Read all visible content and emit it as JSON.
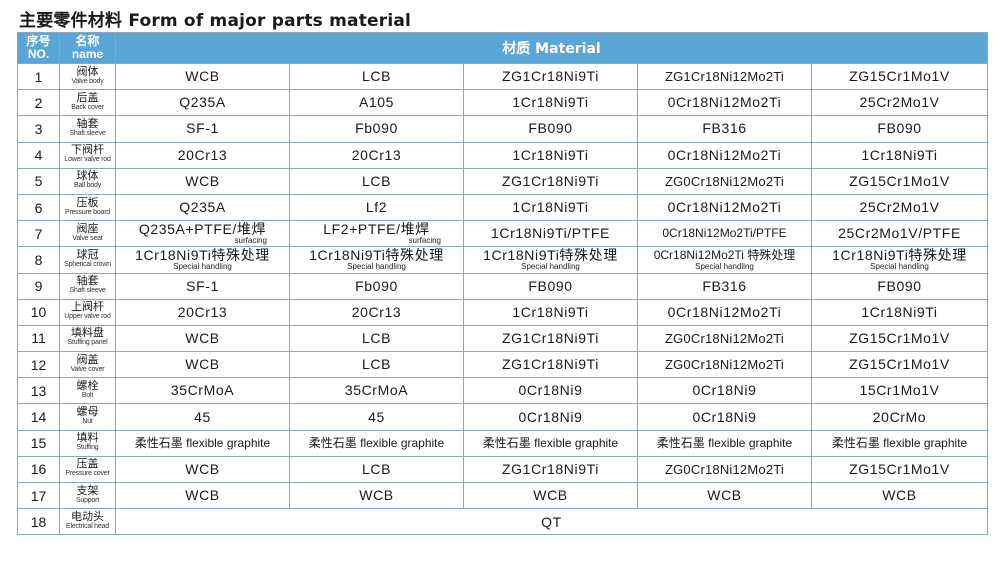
{
  "title": "主要零件材料  Form of major parts material",
  "header": {
    "no_cn": "序号",
    "no_en": "NO.",
    "name_cn": "名称",
    "name_en": "name",
    "material": "材质 Material"
  },
  "rows": [
    {
      "no": "1",
      "cn": "阀体",
      "en": "Valve body",
      "m": [
        "WCB",
        "LCB",
        "ZG1Cr18Ni9Ti",
        "ZG1Cr18Ni12Mo2Ti",
        "ZG15Cr1Mo1V"
      ]
    },
    {
      "no": "2",
      "cn": "后盖",
      "en": "Back cover",
      "m": [
        "Q235A",
        "A105",
        "1Cr18Ni9Ti",
        "0Cr18Ni12Mo2Ti",
        "25Cr2Mo1V"
      ]
    },
    {
      "no": "3",
      "cn": "轴套",
      "en": "Shaft sleeve",
      "m": [
        "SF-1",
        "Fb090",
        "FB090",
        "FB316",
        "FB090"
      ]
    },
    {
      "no": "4",
      "cn": "下阀杆",
      "en": "Lower valve rod",
      "m": [
        "20Cr13",
        "20Cr13",
        "1Cr18Ni9Ti",
        "0Cr18Ni12Mo2Ti",
        "1Cr18Ni9Ti"
      ]
    },
    {
      "no": "5",
      "cn": "球体",
      "en": "Ball body",
      "m": [
        "WCB",
        "LCB",
        "ZG1Cr18Ni9Ti",
        "ZG0Cr18Ni12Mo2Ti",
        "ZG15Cr1Mo1V"
      ]
    },
    {
      "no": "6",
      "cn": "压板",
      "en": "Pressure board",
      "m": [
        "Q235A",
        "Lf2",
        "1Cr18Ni9Ti",
        "0Cr18Ni12Mo2Ti",
        "25Cr2Mo1V"
      ]
    },
    {
      "no": "7",
      "cn": "阀座",
      "en": "Valve seat",
      "m": [
        "Q235A+PTFE/堆焊",
        "LF2+PTFE/堆焊",
        "1Cr18Ni9Ti/PTFE",
        "0Cr18Ni12Mo2Ti/PTFE",
        "25Cr2Mo1V/PTFE"
      ],
      "notes": [
        "surfacing",
        "surfacing",
        "",
        "",
        ""
      ]
    },
    {
      "no": "8",
      "cn": "球冠",
      "en": "Spherical crown",
      "m": [
        "1Cr18Ni9Ti特殊处理",
        "1Cr18Ni9Ti特殊处理",
        "1Cr18Ni9Ti特殊处理",
        "0Cr18Ni12Mo2Ti 特殊处理",
        "1Cr18Ni9Ti特殊处理"
      ],
      "notes": [
        "Special handling",
        "Special handling",
        "Special handling",
        "Special handling",
        "Special handling"
      ]
    },
    {
      "no": "9",
      "cn": "轴套",
      "en": "Shaft sleeve",
      "m": [
        "SF-1",
        "Fb090",
        "FB090",
        "FB316",
        "FB090"
      ]
    },
    {
      "no": "10",
      "cn": "上阀杆",
      "en": "Upper valve rod",
      "m": [
        "20Cr13",
        "20Cr13",
        "1Cr18Ni9Ti",
        "0Cr18Ni12Mo2Ti",
        "1Cr18Ni9Ti"
      ]
    },
    {
      "no": "11",
      "cn": "填料盘",
      "en": "Stuffing panel",
      "m": [
        "WCB",
        "LCB",
        "ZG1Cr18Ni9Ti",
        "ZG0Cr18Ni12Mo2Ti",
        "ZG15Cr1Mo1V"
      ]
    },
    {
      "no": "12",
      "cn": "阀盖",
      "en": "Valve cover",
      "m": [
        "WCB",
        "LCB",
        "ZG1Cr18Ni9Ti",
        "ZG0Cr18Ni12Mo2Ti",
        "ZG15Cr1Mo1V"
      ]
    },
    {
      "no": "13",
      "cn": "螺栓",
      "en": "Bolt",
      "m": [
        "35CrMoA",
        "35CrMoA",
        "0Cr18Ni9",
        "0Cr18Ni9",
        "15Cr1Mo1V"
      ]
    },
    {
      "no": "14",
      "cn": "螺母",
      "en": "Nut",
      "m": [
        "45",
        "45",
        "0Cr18Ni9",
        "0Cr18Ni9",
        "20CrMo"
      ]
    },
    {
      "no": "15",
      "cn": "填料",
      "en": "Stuffing",
      "m": [
        "柔性石墨 flexible graphite",
        "柔性石墨 flexible graphite",
        "柔性石墨 flexible graphite",
        "柔性石墨 flexible graphite",
        "柔性石墨 flexible graphite"
      ]
    },
    {
      "no": "16",
      "cn": "压盖",
      "en": "Pressure cover",
      "m": [
        "WCB",
        "LCB",
        "ZG1Cr18Ni9Ti",
        "ZG0Cr18Ni12Mo2Ti",
        "ZG15Cr1Mo1V"
      ]
    },
    {
      "no": "17",
      "cn": "支架",
      "en": "Support",
      "m": [
        "WCB",
        "WCB",
        "WCB",
        "WCB",
        "WCB"
      ]
    },
    {
      "no": "18",
      "cn": "电动头",
      "en": "Electrical head",
      "span": "QT"
    }
  ]
}
